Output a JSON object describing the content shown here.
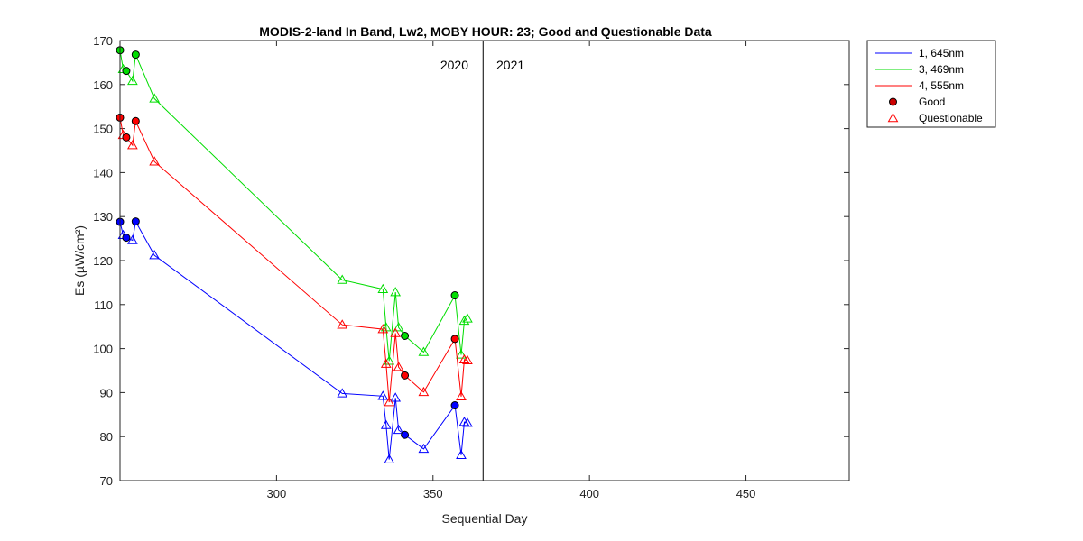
{
  "chart_data": {
    "type": "line",
    "title": "MODIS-2-land In Band,  Lw2, MOBY HOUR: 23;  Good and Questionable Data",
    "xlabel": "Sequential Day",
    "ylabel": "Es (µW/cm²)",
    "xlim": [
      250,
      483
    ],
    "ylim": [
      70,
      170
    ],
    "xticks": [
      300,
      350,
      400,
      450
    ],
    "yticks": [
      70,
      80,
      90,
      100,
      110,
      120,
      130,
      140,
      150,
      160,
      170
    ],
    "grid": false,
    "legend_position": "outside-top-right",
    "year_divider_x": 366,
    "year_labels": [
      "2020",
      "2021"
    ],
    "series": [
      {
        "name": "1, 645nm",
        "color": "#0000ff",
        "x": [
          250,
          251,
          252,
          254,
          255,
          261,
          321,
          334,
          335,
          336,
          338,
          339,
          341,
          347,
          357,
          359,
          360,
          361
        ],
        "y": [
          128.8,
          125.8,
          125.2,
          124.6,
          128.9,
          121.2,
          89.8,
          89.2,
          82.6,
          74.8,
          88.8,
          81.5,
          80.4,
          77.2,
          87.1,
          75.8,
          83.3,
          83.1
        ],
        "quality": [
          "G",
          "Q",
          "G",
          "Q",
          "G",
          "Q",
          "Q",
          "Q",
          "Q",
          "Q",
          "Q",
          "Q",
          "G",
          "Q",
          "G",
          "Q",
          "Q",
          "Q"
        ]
      },
      {
        "name": "3, 469nm",
        "color": "#00dd00",
        "x": [
          250,
          251,
          252,
          254,
          255,
          261,
          321,
          334,
          335,
          336,
          338,
          339,
          341,
          347,
          357,
          359,
          360,
          361
        ],
        "y": [
          167.8,
          163.5,
          163.1,
          160.8,
          166.8,
          156.8,
          115.6,
          113.5,
          104.8,
          97.2,
          112.8,
          104.8,
          102.9,
          99.2,
          112.1,
          98.6,
          106.3,
          106.8
        ],
        "quality": [
          "G",
          "Q",
          "G",
          "Q",
          "G",
          "Q",
          "Q",
          "Q",
          "Q",
          "Q",
          "Q",
          "Q",
          "G",
          "Q",
          "G",
          "Q",
          "Q",
          "Q"
        ]
      },
      {
        "name": "4, 555nm",
        "color": "#ff0000",
        "x": [
          250,
          251,
          252,
          254,
          255,
          261,
          321,
          334,
          335,
          336,
          338,
          339,
          341,
          347,
          357,
          359,
          360,
          361
        ],
        "y": [
          152.5,
          148.5,
          148.0,
          146.2,
          151.7,
          142.5,
          105.4,
          104.4,
          96.5,
          87.8,
          103.5,
          95.8,
          93.9,
          90.1,
          102.2,
          89.1,
          97.5,
          97.3
        ],
        "quality": [
          "G",
          "Q",
          "G",
          "Q",
          "G",
          "Q",
          "Q",
          "Q",
          "Q",
          "Q",
          "Q",
          "Q",
          "G",
          "Q",
          "G",
          "Q",
          "Q",
          "Q"
        ]
      }
    ],
    "markers": [
      {
        "name": "Good",
        "symbol": "filled-circle",
        "color": "#cc0000"
      },
      {
        "name": "Questionable",
        "symbol": "open-triangle",
        "color": "#ff0000"
      }
    ]
  }
}
